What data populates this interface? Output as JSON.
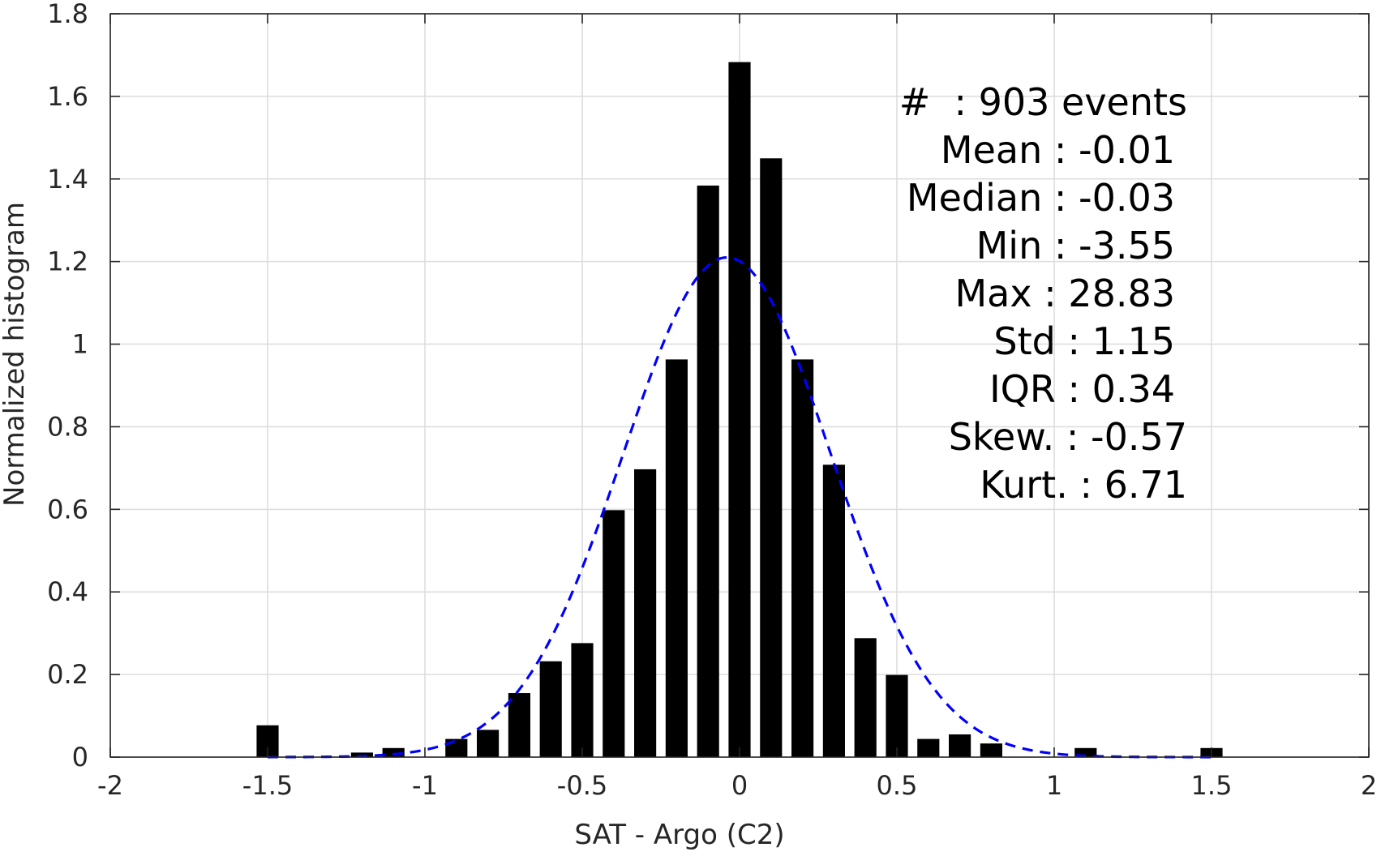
{
  "chart_data": {
    "type": "bar",
    "xlabel": "SAT - Argo (C2)",
    "ylabel": "Normalized histogram",
    "xlim": [
      -2,
      2
    ],
    "ylim": [
      0,
      1.8
    ],
    "xticks": [
      -2,
      -1.5,
      -1,
      -0.5,
      0,
      0.5,
      1,
      1.5,
      2
    ],
    "xtick_labels": [
      "-2",
      "-1.5",
      "-1",
      "-0.5",
      "0",
      "0.5",
      "1",
      "1.5",
      "2"
    ],
    "yticks": [
      0,
      0.2,
      0.4,
      0.6,
      0.8,
      1,
      1.2,
      1.4,
      1.6,
      1.8
    ],
    "ytick_labels": [
      "0",
      "0.2",
      "0.4",
      "0.6",
      "0.8",
      "1",
      "1.2",
      "1.4",
      "1.6",
      "1.8"
    ],
    "grid": true,
    "bar_color": "#000000",
    "bin_width": 0.1,
    "bars": [
      {
        "x": -1.5,
        "y": 0.077
      },
      {
        "x": -1.2,
        "y": 0.011
      },
      {
        "x": -1.1,
        "y": 0.022
      },
      {
        "x": -0.9,
        "y": 0.044
      },
      {
        "x": -0.8,
        "y": 0.066
      },
      {
        "x": -0.7,
        "y": 0.155
      },
      {
        "x": -0.6,
        "y": 0.232
      },
      {
        "x": -0.5,
        "y": 0.276
      },
      {
        "x": -0.4,
        "y": 0.598
      },
      {
        "x": -0.3,
        "y": 0.697
      },
      {
        "x": -0.2,
        "y": 0.963
      },
      {
        "x": -0.1,
        "y": 1.384
      },
      {
        "x": 0.0,
        "y": 1.683
      },
      {
        "x": 0.1,
        "y": 1.45
      },
      {
        "x": 0.2,
        "y": 0.963
      },
      {
        "x": 0.3,
        "y": 0.708
      },
      {
        "x": 0.4,
        "y": 0.288
      },
      {
        "x": 0.5,
        "y": 0.199
      },
      {
        "x": 0.6,
        "y": 0.044
      },
      {
        "x": 0.7,
        "y": 0.055
      },
      {
        "x": 0.8,
        "y": 0.033
      },
      {
        "x": 1.1,
        "y": 0.022
      },
      {
        "x": 1.5,
        "y": 0.022
      }
    ],
    "fit_curve": {
      "type": "gaussian",
      "style": "dashed",
      "color": "#0000ff",
      "x_range": [
        -1.5,
        1.5
      ],
      "mu": -0.04,
      "sigma": 0.33,
      "peak": 1.21
    },
    "stats": {
      "count": "#  : 903 events",
      "mean": "Mean : -0.01",
      "median": "Median : -0.03",
      "min": "Min : -3.55",
      "max": "Max : 28.83",
      "std": "Std : 1.15",
      "iqr": "IQR : 0.34",
      "skew": "Skew. : -0.57",
      "kurt": "Kurt. : 6.71"
    }
  }
}
